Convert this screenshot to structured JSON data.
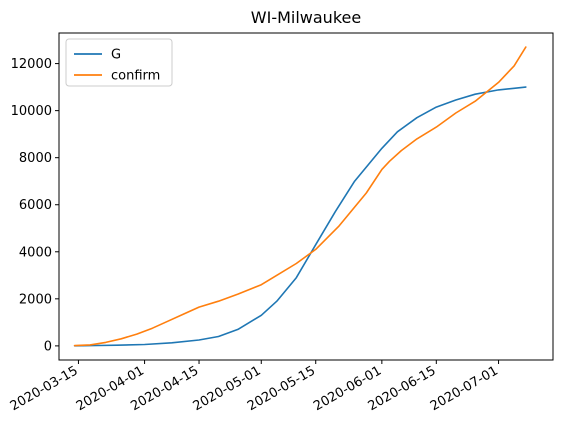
{
  "chart_data": {
    "type": "line",
    "title": "WI-Milwaukee",
    "xlabel": "",
    "ylabel": "",
    "x_axis": "date",
    "xlim": [
      "2020-03-10",
      "2020-07-15"
    ],
    "ylim": [
      -600,
      13300
    ],
    "x_ticks": [
      "2020-03-15",
      "2020-04-01",
      "2020-04-15",
      "2020-05-01",
      "2020-05-15",
      "2020-06-01",
      "2020-06-15",
      "2020-07-01"
    ],
    "y_ticks": [
      0,
      2000,
      4000,
      6000,
      8000,
      10000,
      12000
    ],
    "y_tick_labels": [
      "0",
      "2000",
      "4000",
      "6000",
      "8000",
      "10000",
      "12000"
    ],
    "grid": false,
    "legend_position": "upper-left",
    "series": [
      {
        "name": "G",
        "color": "#1f77b4",
        "points": [
          [
            "2020-03-14",
            5
          ],
          [
            "2020-03-20",
            15
          ],
          [
            "2020-03-25",
            30
          ],
          [
            "2020-04-01",
            60
          ],
          [
            "2020-04-08",
            130
          ],
          [
            "2020-04-15",
            250
          ],
          [
            "2020-04-20",
            400
          ],
          [
            "2020-04-25",
            700
          ],
          [
            "2020-05-01",
            1300
          ],
          [
            "2020-05-05",
            1900
          ],
          [
            "2020-05-10",
            2900
          ],
          [
            "2020-05-15",
            4300
          ],
          [
            "2020-05-20",
            5700
          ],
          [
            "2020-05-25",
            7000
          ],
          [
            "2020-06-01",
            8400
          ],
          [
            "2020-06-05",
            9100
          ],
          [
            "2020-06-10",
            9700
          ],
          [
            "2020-06-15",
            10150
          ],
          [
            "2020-06-20",
            10450
          ],
          [
            "2020-06-25",
            10700
          ],
          [
            "2020-07-01",
            10880
          ],
          [
            "2020-07-05",
            10950
          ],
          [
            "2020-07-08",
            11000
          ]
        ]
      },
      {
        "name": "confirm",
        "color": "#ff7f0e",
        "points": [
          [
            "2020-03-14",
            10
          ],
          [
            "2020-03-18",
            40
          ],
          [
            "2020-03-22",
            150
          ],
          [
            "2020-03-26",
            300
          ],
          [
            "2020-03-30",
            500
          ],
          [
            "2020-04-03",
            750
          ],
          [
            "2020-04-07",
            1050
          ],
          [
            "2020-04-11",
            1350
          ],
          [
            "2020-04-15",
            1650
          ],
          [
            "2020-04-20",
            1900
          ],
          [
            "2020-04-25",
            2200
          ],
          [
            "2020-05-01",
            2600
          ],
          [
            "2020-05-05",
            3000
          ],
          [
            "2020-05-10",
            3500
          ],
          [
            "2020-05-15",
            4100
          ],
          [
            "2020-05-18",
            4600
          ],
          [
            "2020-05-21",
            5100
          ],
          [
            "2020-05-25",
            5900
          ],
          [
            "2020-05-28",
            6500
          ],
          [
            "2020-06-01",
            7500
          ],
          [
            "2020-06-03",
            7850
          ],
          [
            "2020-06-06",
            8300
          ],
          [
            "2020-06-10",
            8800
          ],
          [
            "2020-06-15",
            9300
          ],
          [
            "2020-06-20",
            9900
          ],
          [
            "2020-06-25",
            10400
          ],
          [
            "2020-07-01",
            11200
          ],
          [
            "2020-07-05",
            11900
          ],
          [
            "2020-07-08",
            12700
          ]
        ]
      }
    ]
  }
}
